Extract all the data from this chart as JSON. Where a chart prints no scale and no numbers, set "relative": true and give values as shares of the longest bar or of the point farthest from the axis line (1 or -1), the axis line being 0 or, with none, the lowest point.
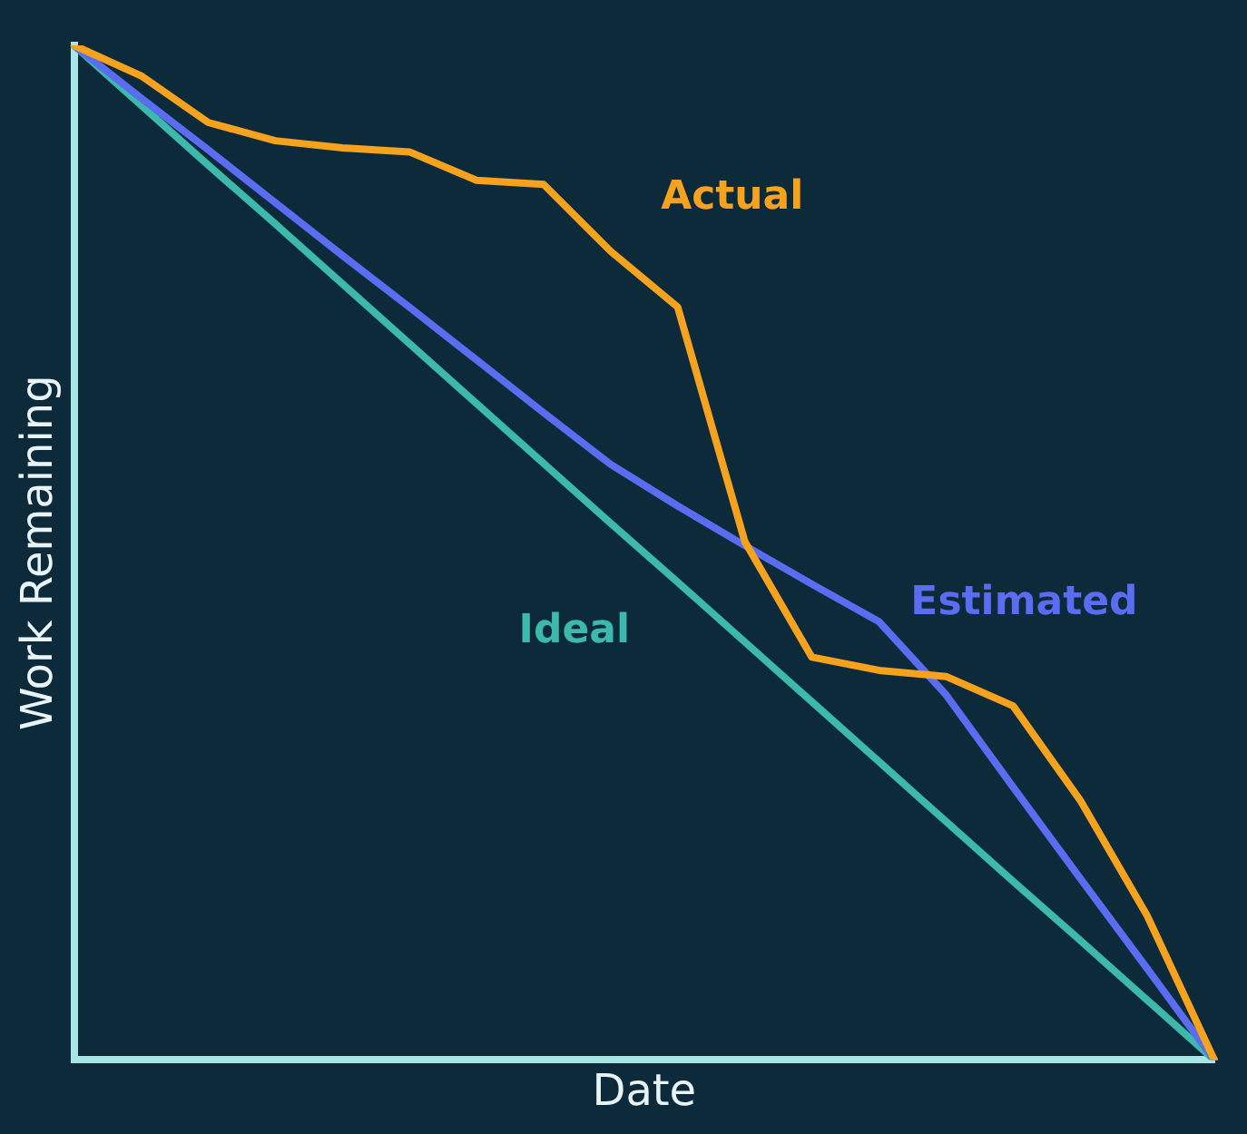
{
  "chart_data": {
    "type": "line",
    "xlabel": "Date",
    "ylabel": "Work Remaining",
    "relative": true,
    "legend": false,
    "grid": false,
    "marker": "none",
    "line_style": "solid",
    "categories": [
      null,
      null,
      null,
      null,
      null,
      null,
      null,
      null,
      null,
      null,
      null,
      null,
      null,
      null,
      null,
      null,
      null,
      null
    ],
    "series": [
      {
        "name": "Actual",
        "color": "#f5a31f",
        "values": [
          1,
          0.97,
          0.924,
          0.906,
          0.899,
          0.895,
          0.867,
          0.863,
          0.797,
          0.742,
          0.511,
          0.397,
          0.384,
          0.378,
          0.349,
          0.256,
          0.142,
          0
        ]
      },
      {
        "name": "Estimated",
        "color": "#5a6cf0",
        "values": [
          1,
          0.948,
          0.897,
          0.845,
          0.793,
          0.742,
          0.69,
          0.638,
          0.587,
          0.546,
          0.507,
          0.469,
          0.432,
          0.36,
          0.269,
          0.179,
          0.09,
          0
        ]
      },
      {
        "name": "Ideal",
        "color": "#3cb8ac",
        "values": [
          1,
          0.941,
          0.882,
          0.824,
          0.765,
          0.706,
          0.647,
          0.588,
          0.529,
          0.471,
          0.412,
          0.353,
          0.294,
          0.235,
          0.176,
          0.118,
          0.059,
          0
        ]
      }
    ]
  }
}
